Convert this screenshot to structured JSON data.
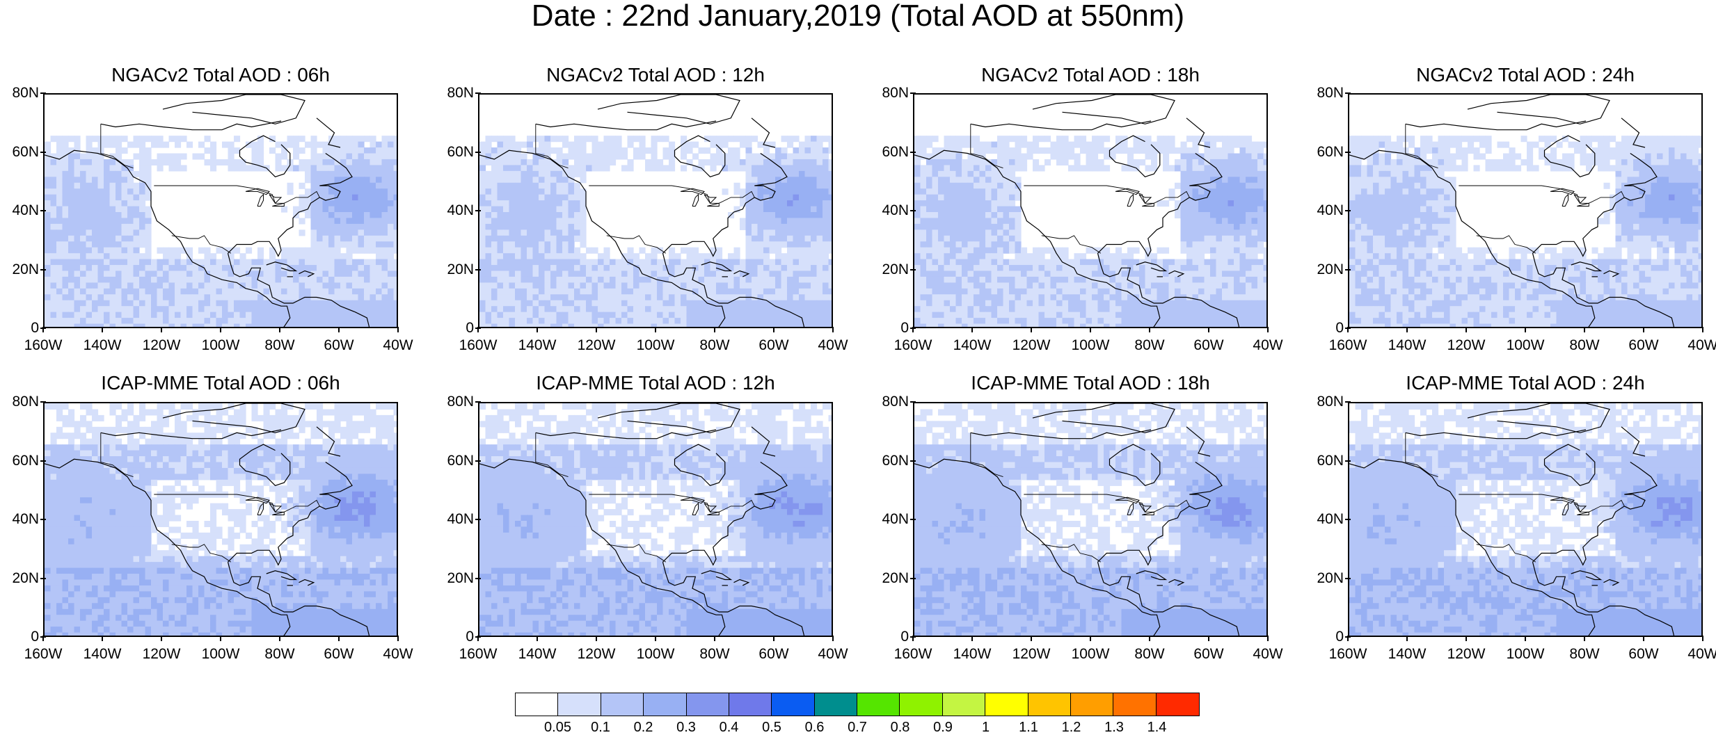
{
  "title": "Date : 22nd January,2019 (Total AOD at 550nm)",
  "panels": [
    {
      "title": "NGACv2 Total AOD : 06h",
      "row": 0,
      "col": 0,
      "model": "ngac"
    },
    {
      "title": "NGACv2 Total AOD : 12h",
      "row": 0,
      "col": 1,
      "model": "ngac"
    },
    {
      "title": "NGACv2 Total AOD : 18h",
      "row": 0,
      "col": 2,
      "model": "ngac"
    },
    {
      "title": "NGACv2 Total AOD : 24h",
      "row": 0,
      "col": 3,
      "model": "ngac"
    },
    {
      "title": "ICAP-MME Total AOD : 06h",
      "row": 1,
      "col": 0,
      "model": "icap"
    },
    {
      "title": "ICAP-MME Total AOD : 12h",
      "row": 1,
      "col": 1,
      "model": "icap"
    },
    {
      "title": "ICAP-MME Total AOD : 18h",
      "row": 1,
      "col": 2,
      "model": "icap"
    },
    {
      "title": "ICAP-MME Total AOD : 24h",
      "row": 1,
      "col": 3,
      "model": "icap"
    }
  ],
  "axes": {
    "lat_labels": [
      "80N",
      "60N",
      "40N",
      "20N",
      "0"
    ],
    "lon_labels": [
      "160W",
      "140W",
      "120W",
      "100W",
      "80W",
      "60W",
      "40W"
    ],
    "lat_range": [
      0,
      80
    ],
    "lon_range": [
      -160,
      -40
    ]
  },
  "colorbar": {
    "labels": [
      "0.05",
      "0.1",
      "0.2",
      "0.3",
      "0.4",
      "0.5",
      "0.6",
      "0.7",
      "0.8",
      "0.9",
      "1",
      "1.1",
      "1.2",
      "1.3",
      "1.4"
    ],
    "colors": [
      "#ffffff",
      "#d6e0fb",
      "#b4c5f7",
      "#98b0f3",
      "#8496ee",
      "#6f79ea",
      "#0a5cf2",
      "#008e8e",
      "#55e500",
      "#8ff200",
      "#c4f542",
      "#ffff00",
      "#ffc400",
      "#ff9e00",
      "#ff7200",
      "#ff2a00"
    ]
  }
}
